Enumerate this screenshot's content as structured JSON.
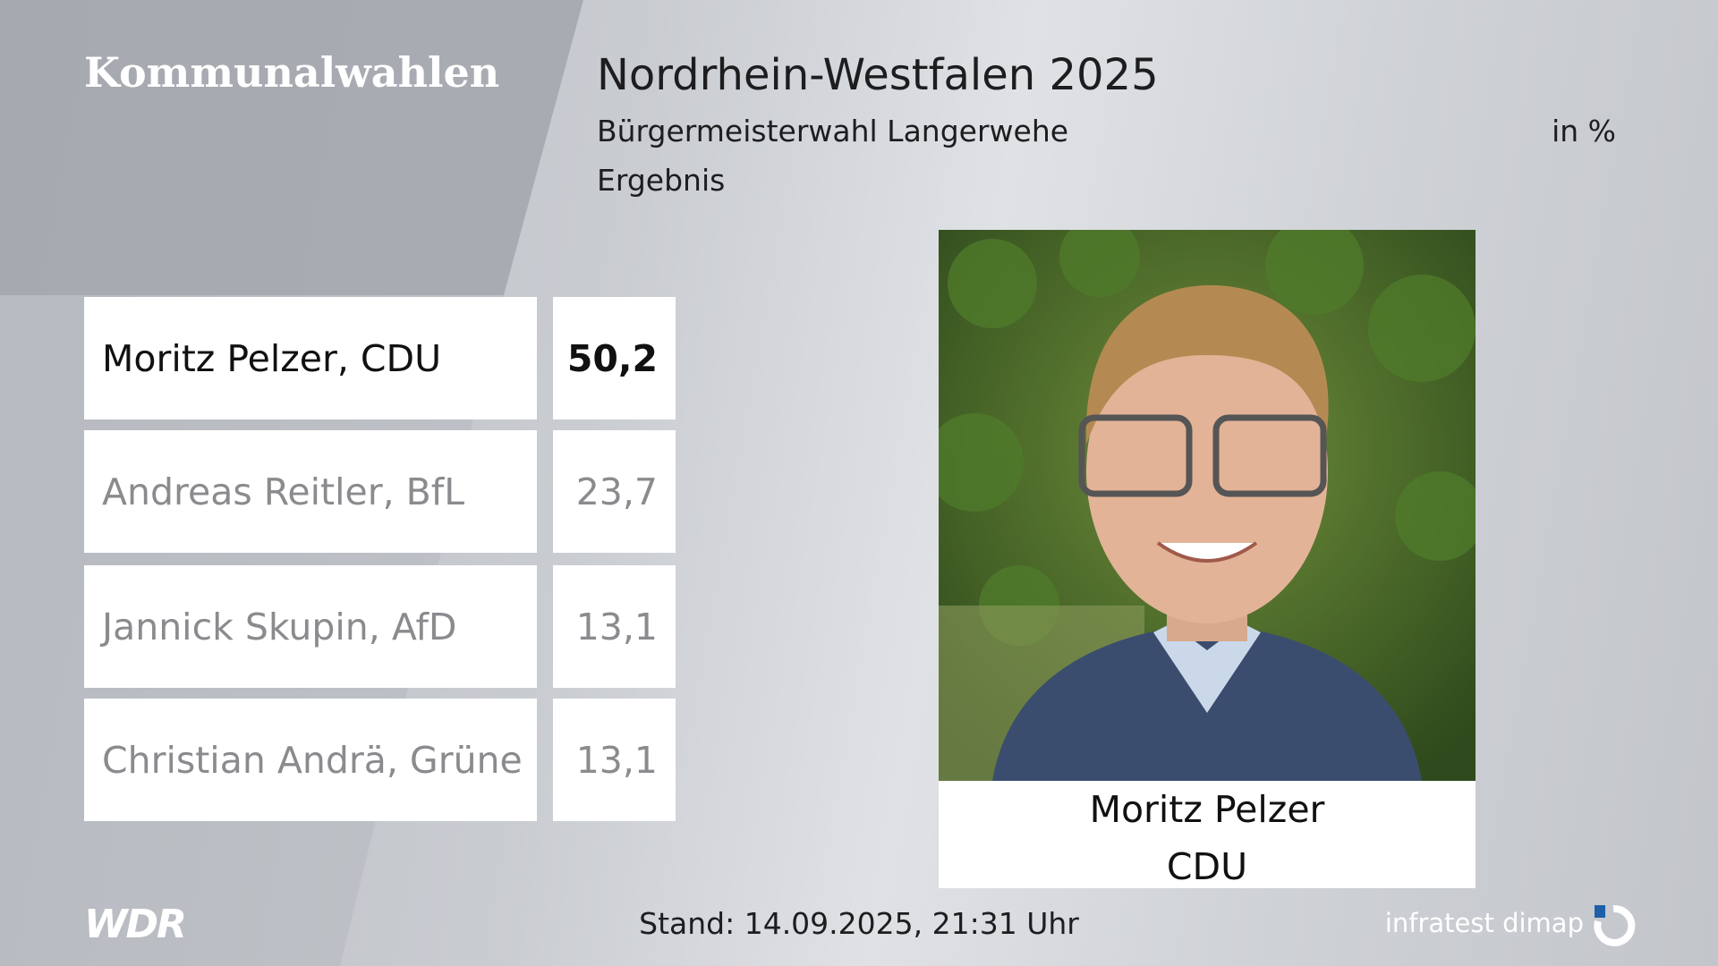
{
  "header": {
    "program": "Kommunalwahlen",
    "title": "Nordrhein-Westfalen 2025",
    "subtitle": "Bürgermeisterwahl Langerwehe",
    "unit": "in %",
    "status": "Ergebnis"
  },
  "table": {
    "rows": [
      [
        "Moritz Pelzer, CDU",
        "50,2"
      ],
      [
        "Andreas Reitler, BfL",
        "23,7"
      ],
      [
        "Jannick Skupin, AfD",
        "13,1"
      ],
      [
        "Christian Andrä, Grüne",
        "13,1"
      ]
    ]
  },
  "winner": {
    "name": "Moritz Pelzer",
    "party": "CDU"
  },
  "footer": {
    "broadcaster": "WDR",
    "timestamp": "Stand: 14.09.2025, 21:31 Uhr",
    "institute": "infratest dimap"
  }
}
